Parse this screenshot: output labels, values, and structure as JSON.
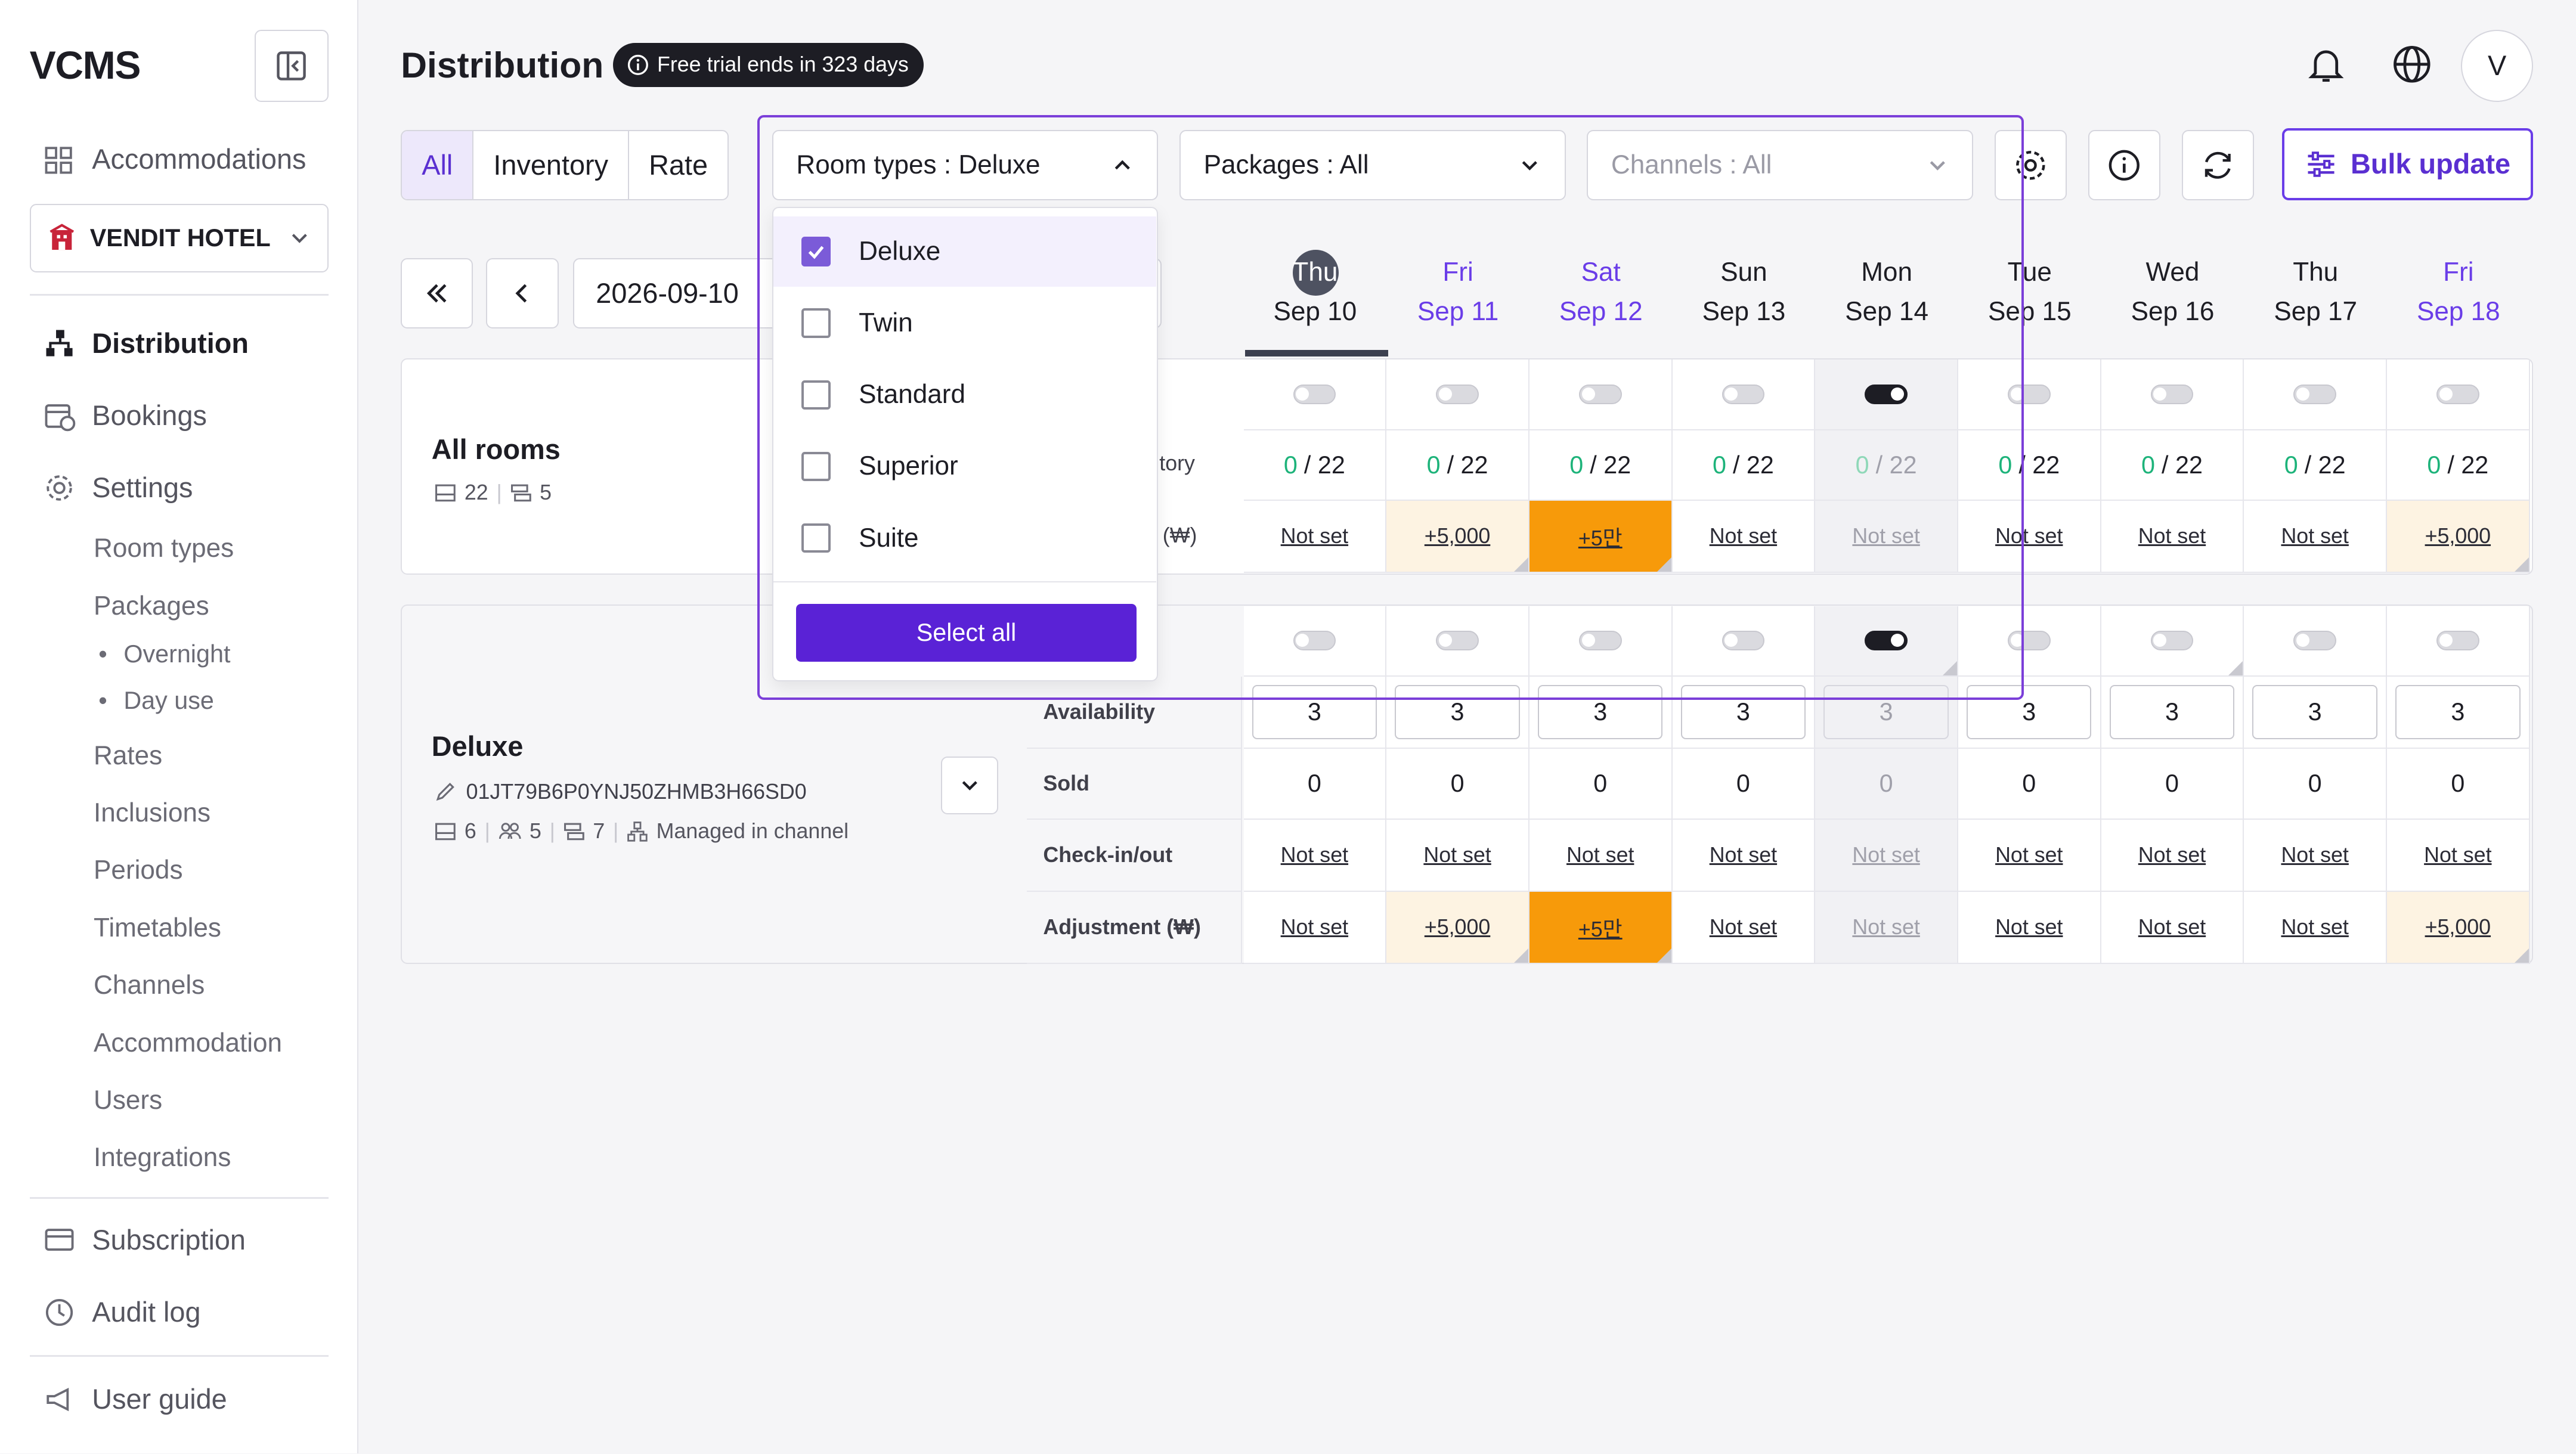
{
  "sidebar": {
    "logo": "VCMS",
    "accommodations": "Accommodations",
    "hotel": "VENDIT HOTEL",
    "distribution": "Distribution",
    "bookings": "Bookings",
    "settings": "Settings",
    "sub": [
      "Room types",
      "Packages",
      "Rates",
      "Inclusions",
      "Periods",
      "Timetables",
      "Channels",
      "Accommodation",
      "Users",
      "Integrations"
    ],
    "packages_sub": [
      "Overnight",
      "Day use"
    ],
    "subscription": "Subscription",
    "audit": "Audit log",
    "guide": "User guide"
  },
  "header": {
    "title": "Distribution",
    "trial": "Free trial ends in 323 days",
    "avatar": "V"
  },
  "toolbar": {
    "tabs": [
      "All",
      "Inventory",
      "Rate"
    ],
    "room_types": "Room types : Deluxe",
    "packages": "Packages : All",
    "channels": "Channels : All",
    "bulk": "Bulk update"
  },
  "date": "2026-09-10",
  "days": [
    {
      "dow": "Thu",
      "date": "Sep 10"
    },
    {
      "dow": "Fri",
      "date": "Sep 11"
    },
    {
      "dow": "Sat",
      "date": "Sep 12"
    },
    {
      "dow": "Sun",
      "date": "Sep 13"
    },
    {
      "dow": "Mon",
      "date": "Sep 14"
    },
    {
      "dow": "Tue",
      "date": "Sep 15"
    },
    {
      "dow": "Wed",
      "date": "Sep 16"
    },
    {
      "dow": "Thu",
      "date": "Sep 17"
    },
    {
      "dow": "Fri",
      "date": "Sep 18"
    }
  ],
  "all_rooms": {
    "title": "All rooms",
    "beds": "22",
    "rooms": "5",
    "inventory_label": "tory",
    "adjust_label": "(₩)",
    "inventory_sold": "0",
    "inventory_total": "/ 22",
    "adjust": [
      "Not set",
      "+5,000",
      "+5만",
      "Not set",
      "Not set",
      "Not set",
      "Not set",
      "Not set",
      "+5,000"
    ]
  },
  "deluxe": {
    "title": "Deluxe",
    "id": "01JT79B6P0YNJ50ZHMB3H66SD0",
    "beds": "6",
    "guests": "5",
    "rooms": "7",
    "managed": "Managed in channel",
    "labels": {
      "availability": "Availability",
      "sold": "Sold",
      "check": "Check-in/out",
      "adjust": "Adjustment (₩)"
    },
    "availability": "3",
    "sold": "0",
    "check": "Not set",
    "adjust": [
      "Not set",
      "+5,000",
      "+5만",
      "Not set",
      "Not set",
      "Not set",
      "Not set",
      "Not set",
      "+5,000"
    ]
  },
  "dropdown": {
    "options": [
      {
        "label": "Deluxe",
        "checked": true
      },
      {
        "label": "Twin",
        "checked": false
      },
      {
        "label": "Standard",
        "checked": false
      },
      {
        "label": "Superior",
        "checked": false
      },
      {
        "label": "Suite",
        "checked": false
      }
    ],
    "select_all": "Select all"
  }
}
